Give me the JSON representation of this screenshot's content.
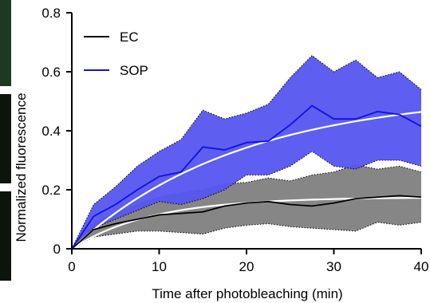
{
  "chart_data": {
    "type": "line",
    "title": "",
    "xlabel": "Time after photobleaching (min)",
    "ylabel": "Normalized fluorescence",
    "xlim": [
      0,
      40
    ],
    "ylim": [
      0,
      0.8
    ],
    "x_ticks": [
      0,
      10,
      20,
      30,
      40
    ],
    "y_ticks": [
      0,
      0.2,
      0.4,
      0.6,
      0.8
    ],
    "x_tick_labels": [
      "0",
      "10",
      "20",
      "30",
      "40"
    ],
    "y_tick_labels": [
      "0",
      "0.2",
      "0.4",
      "0.6",
      "0.8"
    ],
    "grid": false,
    "legend_position": "top-left",
    "series": [
      {
        "name": "EC",
        "color": "#000000",
        "band_color": "#808080",
        "fit_color": "#ffffff",
        "x": [
          0,
          2.5,
          5,
          7.5,
          10,
          12.5,
          15,
          17.5,
          20,
          22.5,
          25,
          27.5,
          30,
          32.5,
          35,
          37.5,
          40
        ],
        "mean": [
          0,
          0.065,
          0.085,
          0.1,
          0.115,
          0.12,
          0.125,
          0.145,
          0.155,
          0.16,
          0.15,
          0.145,
          0.155,
          0.17,
          0.175,
          0.18,
          0.175
        ],
        "upper": [
          0,
          0.09,
          0.12,
          0.15,
          0.175,
          0.19,
          0.2,
          0.22,
          0.225,
          0.24,
          0.23,
          0.25,
          0.26,
          0.285,
          0.27,
          0.28,
          0.26
        ],
        "lower": [
          0,
          0.04,
          0.05,
          0.06,
          0.06,
          0.055,
          0.05,
          0.07,
          0.08,
          0.085,
          0.075,
          0.07,
          0.065,
          0.06,
          0.09,
          0.08,
          0.09
        ],
        "fit_plateau": 0.175,
        "fit_rate": 0.11
      },
      {
        "name": "SOP",
        "color": "#1010e0",
        "band_color": "#5555f0",
        "fit_color": "#ffffff",
        "x": [
          0,
          2.5,
          5,
          7.5,
          10,
          12.5,
          15,
          17.5,
          20,
          22.5,
          25,
          27.5,
          30,
          32.5,
          35,
          37.5,
          40
        ],
        "mean": [
          0,
          0.11,
          0.15,
          0.2,
          0.245,
          0.26,
          0.345,
          0.335,
          0.36,
          0.365,
          0.42,
          0.485,
          0.44,
          0.44,
          0.465,
          0.455,
          0.415
        ],
        "upper": [
          0,
          0.15,
          0.21,
          0.28,
          0.33,
          0.37,
          0.47,
          0.44,
          0.46,
          0.49,
          0.58,
          0.655,
          0.6,
          0.64,
          0.58,
          0.6,
          0.54
        ],
        "lower": [
          0,
          0.07,
          0.1,
          0.13,
          0.16,
          0.15,
          0.17,
          0.2,
          0.25,
          0.25,
          0.28,
          0.33,
          0.28,
          0.27,
          0.3,
          0.3,
          0.28
        ],
        "fit_plateau": 0.53,
        "fit_rate": 0.052
      }
    ]
  }
}
